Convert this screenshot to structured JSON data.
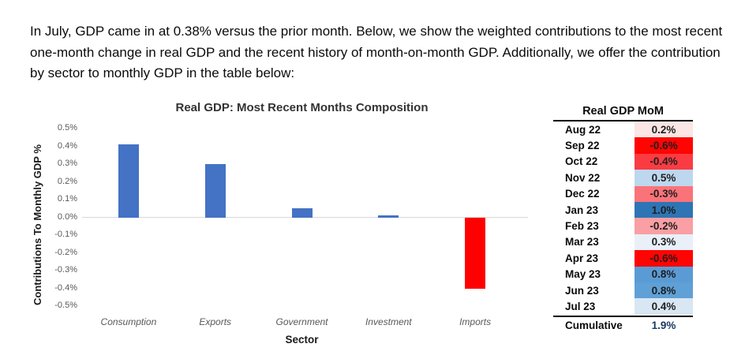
{
  "intro_text": "In July, GDP came in at 0.38% versus the prior month. Below, we show the weighted contributions to the most recent one-month change in real GDP and the recent history of month-on-month GDP. Additionally, we offer the contribution by sector to monthly GDP in the table below:",
  "chart_data": {
    "type": "bar",
    "title": "Real GDP: Most Recent Months Composition",
    "xlabel": "Sector",
    "ylabel": "Contributions To Monthly GDP %",
    "categories": [
      "Consumption",
      "Exports",
      "Government",
      "Investment",
      "Imports"
    ],
    "values": [
      0.41,
      0.3,
      0.05,
      0.01,
      -0.4
    ],
    "unit": "%",
    "ylim": [
      -0.5,
      0.5
    ],
    "ytick_step": 0.1,
    "y_ticks": [
      "0.5%",
      "0.4%",
      "0.3%",
      "0.2%",
      "0.1%",
      "0.0%",
      "-0.1%",
      "-0.2%",
      "-0.3%",
      "-0.4%",
      "-0.5%"
    ],
    "grid": "zero-line-only",
    "legend": "none",
    "bar_colors": [
      "#4472C4",
      "#4472C4",
      "#4472C4",
      "#4472C4",
      "#FF0000"
    ],
    "positive_color": "#4472C4",
    "negative_color": "#FF0000",
    "zero_line_color": "#D9D9D9"
  },
  "mom_table": {
    "title": "Real GDP MoM",
    "rows": [
      {
        "month": "Aug 22",
        "value": "0.2%",
        "bg": "#FBE5E5"
      },
      {
        "month": "Sep 22",
        "value": "-0.6%",
        "bg": "#FF0403"
      },
      {
        "month": "Oct 22",
        "value": "-0.4%",
        "bg": "#FA3C42"
      },
      {
        "month": "Nov 22",
        "value": "0.5%",
        "bg": "#BDD7EE"
      },
      {
        "month": "Dec 22",
        "value": "-0.3%",
        "bg": "#FA7378"
      },
      {
        "month": "Jan 23",
        "value": "1.0%",
        "bg": "#2E75B6"
      },
      {
        "month": "Feb 23",
        "value": "-0.2%",
        "bg": "#FA9FA3"
      },
      {
        "month": "Mar 23",
        "value": "0.3%",
        "bg": "#E9F0F8"
      },
      {
        "month": "Apr 23",
        "value": "-0.6%",
        "bg": "#FF0403"
      },
      {
        "month": "May 23",
        "value": "0.8%",
        "bg": "#5B9BD5"
      },
      {
        "month": "Jun 23",
        "value": "0.8%",
        "bg": "#5FA0D7"
      },
      {
        "month": "Jul 23",
        "value": "0.4%",
        "bg": "#D9E6F3"
      }
    ],
    "footer": {
      "label": "Cumulative",
      "value": "1.9%",
      "value_color": "#17375E"
    }
  }
}
